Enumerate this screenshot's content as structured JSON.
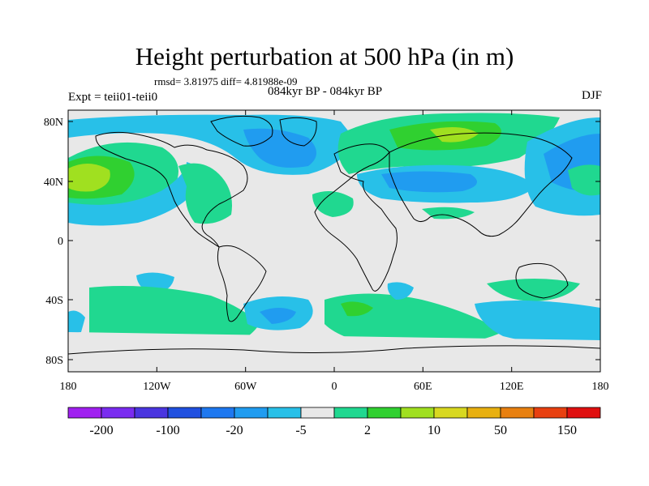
{
  "title": "Height perturbation at 500 hPa (in m)",
  "stats": "rmsd= 3.81975  diff= 4.81988e-09",
  "periods": "084kyr BP - 084kyr BP",
  "experiment": "Expt = teii01-teii0",
  "season": "DJF",
  "map": {
    "lat_labels": [
      "80N",
      "40N",
      "0",
      "40S",
      "80S"
    ],
    "lon_labels": [
      "180",
      "120W",
      "60W",
      "0",
      "60E",
      "120E",
      "180"
    ]
  },
  "colorbar": {
    "colors": [
      "#a020f0",
      "#7a2cf0",
      "#4a35e0",
      "#2050e0",
      "#1e78f0",
      "#209cf0",
      "#28c0e8",
      "#e8e8e8",
      "#20d890",
      "#30d030",
      "#a0e020",
      "#d8d820",
      "#e8b010",
      "#e88010",
      "#e84010",
      "#e01010"
    ],
    "labels": [
      "-200",
      "-100",
      "-20",
      "-5",
      "2",
      "10",
      "50",
      "150"
    ]
  }
}
